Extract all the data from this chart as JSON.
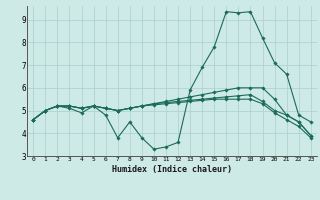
{
  "xlabel": "Humidex (Indice chaleur)",
  "bg_color": "#ceeae6",
  "grid_color": "#aacfcb",
  "line_color": "#1a6b5a",
  "xlim": [
    -0.5,
    23.5
  ],
  "ylim": [
    3,
    9.6
  ],
  "xticks": [
    0,
    1,
    2,
    3,
    4,
    5,
    6,
    7,
    8,
    9,
    10,
    11,
    12,
    13,
    14,
    15,
    16,
    17,
    18,
    19,
    20,
    21,
    22,
    23
  ],
  "yticks": [
    3,
    4,
    5,
    6,
    7,
    8,
    9
  ],
  "series": [
    [
      4.6,
      5.0,
      5.2,
      5.1,
      4.9,
      5.2,
      4.8,
      3.8,
      4.5,
      3.8,
      3.3,
      3.4,
      3.6,
      5.9,
      6.9,
      7.8,
      9.35,
      9.3,
      9.35,
      8.2,
      7.1,
      6.6,
      4.8,
      4.5
    ],
    [
      4.6,
      5.0,
      5.2,
      5.2,
      5.1,
      5.2,
      5.1,
      5.0,
      5.1,
      5.2,
      5.3,
      5.4,
      5.5,
      5.6,
      5.7,
      5.8,
      5.9,
      6.0,
      6.0,
      6.0,
      5.5,
      4.8,
      4.5,
      3.9
    ],
    [
      4.6,
      5.0,
      5.2,
      5.2,
      5.1,
      5.2,
      5.1,
      5.0,
      5.1,
      5.2,
      5.3,
      5.35,
      5.4,
      5.45,
      5.5,
      5.55,
      5.6,
      5.65,
      5.7,
      5.4,
      5.0,
      4.8,
      4.5,
      3.9
    ],
    [
      4.6,
      5.0,
      5.2,
      5.2,
      5.1,
      5.2,
      5.1,
      5.0,
      5.1,
      5.2,
      5.25,
      5.3,
      5.35,
      5.4,
      5.45,
      5.5,
      5.5,
      5.5,
      5.5,
      5.3,
      4.9,
      4.6,
      4.3,
      3.8
    ]
  ]
}
